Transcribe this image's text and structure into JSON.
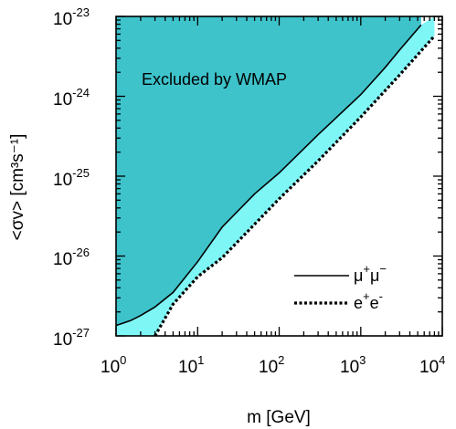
{
  "chart_data": {
    "type": "line",
    "xscale": "log",
    "yscale": "log",
    "xlim": [
      1,
      10000
    ],
    "ylim": [
      1e-27,
      1e-23
    ],
    "xlabel": "m [GeV]",
    "ylabel": "<σv> [cm³s⁻¹]",
    "x_tick_labels": [
      {
        "value": 1,
        "base": "10",
        "exp": "0"
      },
      {
        "value": 10,
        "base": "10",
        "exp": "1"
      },
      {
        "value": 100,
        "base": "10",
        "exp": "2"
      },
      {
        "value": 1000,
        "base": "10",
        "exp": "3"
      },
      {
        "value": 10000,
        "base": "10",
        "exp": "4"
      }
    ],
    "y_tick_labels": [
      {
        "value": 1e-27,
        "base": "10",
        "exp": "-27"
      },
      {
        "value": 1e-26,
        "base": "10",
        "exp": "-26"
      },
      {
        "value": 1e-25,
        "base": "10",
        "exp": "-25"
      },
      {
        "value": 1e-24,
        "base": "10",
        "exp": "-24"
      },
      {
        "value": 1e-23,
        "base": "10",
        "exp": "-23"
      }
    ],
    "annotation": "Excluded by WMAP",
    "legend_position": "bottom-right",
    "series": [
      {
        "name": "μ⁺μ⁻",
        "style": "solid",
        "color": "#000000",
        "fill_color": "#3ec3cb",
        "points": [
          [
            1,
            1.35e-27
          ],
          [
            1.5,
            1.55e-27
          ],
          [
            2,
            1.8e-27
          ],
          [
            3,
            2.3e-27
          ],
          [
            5,
            3.5e-27
          ],
          [
            10,
            8.5e-27
          ],
          [
            20,
            2.3e-26
          ],
          [
            50,
            6e-26
          ],
          [
            100,
            1.1e-25
          ],
          [
            300,
            3.3e-25
          ],
          [
            1000,
            1.05e-24
          ],
          [
            2000,
            2.3e-24
          ],
          [
            3000,
            3.8e-24
          ],
          [
            5500,
            7.8e-24
          ]
        ]
      },
      {
        "name": "e⁺e⁻",
        "style": "dotted",
        "color": "#000000",
        "fill_color": "#7ff6f6",
        "points": [
          [
            3,
            1e-27
          ],
          [
            5,
            2.5e-27
          ],
          [
            10,
            5.5e-27
          ],
          [
            20,
            9.5e-27
          ],
          [
            50,
            2.5e-26
          ],
          [
            100,
            5.2e-26
          ],
          [
            300,
            1.55e-25
          ],
          [
            1000,
            5.5e-25
          ],
          [
            3000,
            1.85e-24
          ],
          [
            8000,
            5.7e-24
          ]
        ]
      }
    ]
  },
  "legend": {
    "mu": {
      "symbol": "μ",
      "charge_1": "+",
      "symbol_2": "μ",
      "charge_2": "−"
    },
    "e": {
      "symbol": "e",
      "charge_1": "+",
      "symbol_2": "e",
      "charge_2": "-"
    }
  },
  "colors": {
    "excluded_fill": "#3ec3cb",
    "band_fill": "#7ff6f6"
  }
}
